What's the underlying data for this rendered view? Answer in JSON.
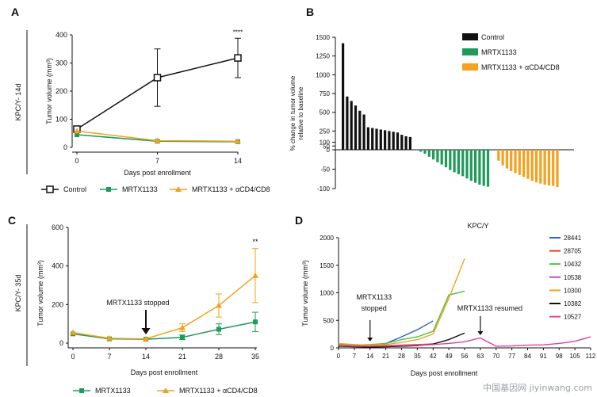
{
  "colors": {
    "black": "#111111",
    "green": "#1e9a5a",
    "orange": "#f4a11d",
    "blue": "#2f5fd6",
    "red": "#e8401c",
    "lightgreen": "#45c43c",
    "magenta": "#c24fd6",
    "pink": "#e6409a"
  },
  "watermark": "中国基因网 jiyinwang.com",
  "chart_data": [
    {
      "panel": "A",
      "type": "line",
      "side_label": "KPC/Y- 14d",
      "xlabel": "Days post enrollment",
      "ylabel": "Tumor volume (mm³)",
      "x": [
        0,
        7,
        14
      ],
      "xlim": [
        0,
        14
      ],
      "ylim": [
        0,
        400
      ],
      "xticks": [
        0,
        7,
        14
      ],
      "yticks": [
        0,
        100,
        200,
        300,
        400
      ],
      "annotations": [
        {
          "x": 14,
          "text": "****"
        }
      ],
      "legend": "bottom",
      "series": [
        {
          "name": "Control",
          "color": "#111111",
          "marker": "square",
          "values": [
            65,
            248,
            318
          ],
          "err": [
            0,
            102,
            70
          ]
        },
        {
          "name": "MRTX1133",
          "color": "#1e9a5a",
          "marker": "square-filled",
          "values": [
            45,
            22,
            20
          ],
          "err": [
            0,
            0,
            0
          ]
        },
        {
          "name": "MRTX1133 + αCD4/CD8",
          "color": "#f4a11d",
          "marker": "triangle",
          "values": [
            58,
            24,
            22
          ],
          "err": [
            0,
            0,
            0
          ]
        }
      ]
    },
    {
      "panel": "B",
      "type": "bar",
      "ylabel": "% change in tumor volume relative to baseline",
      "ylim": [
        -100,
        1500
      ],
      "yticks": [
        -100,
        -50,
        0,
        50,
        100,
        250,
        500,
        750,
        1000,
        1250,
        1500
      ],
      "legend": "top-right",
      "series": [
        {
          "name": "Control",
          "color": "#111111",
          "values": [
            1420,
            710,
            650,
            590,
            520,
            470,
            300,
            290,
            280,
            270,
            260,
            250,
            240,
            230,
            200,
            180,
            170
          ]
        },
        {
          "name": "MRTX1133",
          "color": "#1e9a5a",
          "values": [
            -5,
            -10,
            -18,
            -25,
            -32,
            -38,
            -45,
            -52,
            -58,
            -63,
            -68,
            -74,
            -80,
            -85,
            -90,
            -93,
            -95
          ]
        },
        {
          "name": "MRTX1133 + αCD4/CD8",
          "color": "#f4a11d",
          "values": [
            -28,
            -40,
            -48,
            -55,
            -60,
            -65,
            -70,
            -75,
            -80,
            -84,
            -87,
            -90,
            -92,
            -93,
            -96
          ]
        }
      ]
    },
    {
      "panel": "C",
      "type": "line",
      "side_label": "KPC/Y- 35d",
      "xlabel": "Days post enrollment",
      "ylabel": "Tumor volume (mm³)",
      "x": [
        0,
        7,
        14,
        21,
        28,
        35
      ],
      "xlim": [
        0,
        35
      ],
      "ylim": [
        0,
        600
      ],
      "xticks": [
        0,
        7,
        14,
        21,
        28,
        35
      ],
      "yticks": [
        0,
        200,
        400,
        600
      ],
      "annotations": [
        {
          "x": 35,
          "text": "**"
        },
        {
          "x": 14,
          "text": "MRTX1133 stopped",
          "arrow": true
        }
      ],
      "legend": "bottom",
      "series": [
        {
          "name": "MRTX1133",
          "color": "#1e9a5a",
          "marker": "square-filled",
          "values": [
            48,
            22,
            20,
            30,
            72,
            110
          ],
          "err": [
            0,
            0,
            0,
            12,
            28,
            50
          ]
        },
        {
          "name": "MRTX1133 + αCD4/CD8",
          "color": "#f4a11d",
          "marker": "triangle",
          "values": [
            55,
            25,
            22,
            80,
            195,
            350
          ],
          "err": [
            0,
            0,
            0,
            20,
            60,
            140
          ]
        }
      ]
    },
    {
      "panel": "D",
      "type": "line",
      "title": "KPC/Y",
      "xlabel": "Days post enrollment",
      "ylabel": "Tumor volume (mm³)",
      "xlim": [
        0,
        112
      ],
      "ylim": [
        0,
        2000
      ],
      "xticks": [
        0,
        7,
        14,
        21,
        28,
        35,
        42,
        49,
        56,
        63,
        70,
        77,
        84,
        91,
        98,
        105,
        112
      ],
      "yticks": [
        0,
        500,
        1000,
        1500,
        2000
      ],
      "annotations": [
        {
          "x": 14,
          "text": "MRTX1133\nstopped",
          "arrow": true
        },
        {
          "x": 63,
          "text": "MRTX1133 resumed",
          "arrow": true
        }
      ],
      "legend": "right",
      "series": [
        {
          "name": "28441",
          "color": "#2f5fd6",
          "x": [
            0,
            7,
            14,
            21,
            28,
            35,
            42
          ],
          "values": [
            60,
            40,
            30,
            80,
            200,
            330,
            490
          ]
        },
        {
          "name": "28705",
          "color": "#e8401c",
          "x": [
            0,
            7,
            14,
            21,
            28,
            35,
            42
          ],
          "values": [
            50,
            35,
            30,
            40,
            50,
            60,
            70
          ]
        },
        {
          "name": "10432",
          "color": "#45c43c",
          "x": [
            0,
            7,
            14,
            21,
            28,
            35,
            42,
            49,
            56
          ],
          "values": [
            70,
            50,
            60,
            80,
            150,
            200,
            300,
            960,
            1030
          ]
        },
        {
          "name": "10538",
          "color": "#c24fd6",
          "x": [
            0,
            7,
            14,
            21,
            28,
            35,
            42
          ],
          "values": [
            40,
            30,
            25,
            30,
            40,
            50,
            60
          ]
        },
        {
          "name": "10300",
          "color": "#f4a11d",
          "x": [
            0,
            7,
            14,
            21,
            28,
            35,
            42,
            49,
            56
          ],
          "values": [
            80,
            60,
            50,
            60,
            100,
            150,
            250,
            900,
            1620
          ]
        },
        {
          "name": "10382",
          "color": "#111111",
          "x": [
            0,
            7,
            14,
            21,
            28,
            35,
            42,
            49,
            56
          ],
          "values": [
            30,
            20,
            15,
            20,
            30,
            40,
            70,
            150,
            270
          ]
        },
        {
          "name": "10527",
          "color": "#e6409a",
          "x": [
            0,
            7,
            14,
            21,
            28,
            35,
            42,
            49,
            56,
            63,
            70,
            77,
            84,
            91,
            98,
            105,
            112
          ],
          "values": [
            40,
            30,
            30,
            35,
            40,
            50,
            60,
            80,
            110,
            180,
            30,
            35,
            50,
            55,
            80,
            120,
            200
          ]
        }
      ]
    }
  ]
}
